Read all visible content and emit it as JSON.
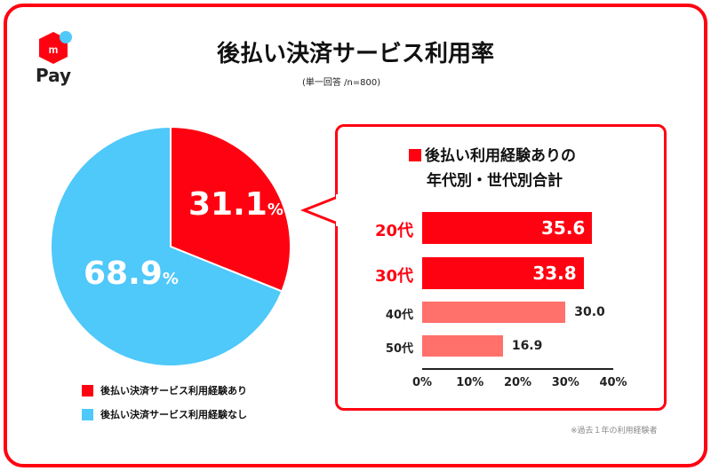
{
  "brand": {
    "logo_letter": "m",
    "logo_text": "Pay"
  },
  "header": {
    "title": "後払い決済サービス利用率",
    "subtitle": "(単一回答 /n=800)"
  },
  "colors": {
    "red": "#ff0211",
    "blue": "#4fc8fa",
    "salmon": "#ff716a"
  },
  "chart_data": [
    {
      "type": "pie",
      "slices": [
        {
          "label": "後払い決済サービス利用経験あり",
          "value": 31.1,
          "display": "31.1",
          "unit": "%",
          "color": "#ff0211"
        },
        {
          "label": "後払い決済サービス利用経験なし",
          "value": 68.9,
          "display": "68.9",
          "unit": "%",
          "color": "#4fc8fa"
        }
      ]
    },
    {
      "type": "bar",
      "title_line1": "後払い利用経験ありの",
      "title_line2": "年代別・世代別合計",
      "categories": [
        "20代",
        "30代",
        "40代",
        "50代"
      ],
      "values": [
        35.6,
        33.8,
        30.0,
        16.9
      ],
      "labels": [
        "35.6",
        "33.8",
        "30.0",
        "16.9"
      ],
      "xlim": [
        0,
        40
      ],
      "ticks": [
        "0%",
        "10%",
        "20%",
        "30%",
        "40%"
      ]
    }
  ],
  "footnote": "※過去１年の利用経験者"
}
